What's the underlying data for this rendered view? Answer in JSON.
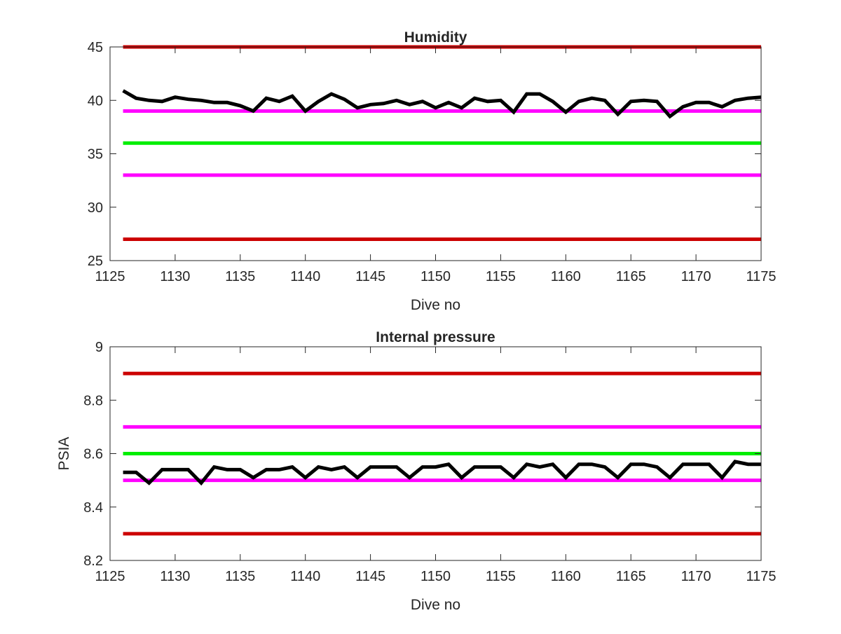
{
  "chart_data": [
    {
      "type": "line",
      "title": "Humidity",
      "xlabel": "Dive no",
      "ylabel": "",
      "xlim": [
        1125,
        1175
      ],
      "ylim": [
        25,
        45
      ],
      "xticks": [
        "1125",
        "1130",
        "1135",
        "1140",
        "1145",
        "1150",
        "1155",
        "1160",
        "1165",
        "1170",
        "1175"
      ],
      "yticks": [
        "25",
        "30",
        "35",
        "40",
        "45"
      ],
      "grid": false,
      "thresholds": [
        {
          "value": 45,
          "color": "#cc0000"
        },
        {
          "value": 39,
          "color": "#ff00ff"
        },
        {
          "value": 36,
          "color": "#00ee00"
        },
        {
          "value": 33,
          "color": "#ff00ff"
        },
        {
          "value": 27,
          "color": "#cc0000"
        }
      ],
      "series": [
        {
          "color": "#000000",
          "x": [
            1126,
            1127,
            1128,
            1129,
            1130,
            1131,
            1132,
            1133,
            1134,
            1135,
            1136,
            1137,
            1138,
            1139,
            1140,
            1141,
            1142,
            1143,
            1144,
            1145,
            1146,
            1147,
            1148,
            1149,
            1150,
            1151,
            1152,
            1153,
            1154,
            1155,
            1156,
            1157,
            1158,
            1159,
            1160,
            1161,
            1162,
            1163,
            1164,
            1165,
            1166,
            1167,
            1168,
            1169,
            1170,
            1171,
            1172,
            1173,
            1174,
            1175
          ],
          "values": [
            40.9,
            40.2,
            40.0,
            39.9,
            40.3,
            40.1,
            40.0,
            39.8,
            39.8,
            39.5,
            39.0,
            40.2,
            39.9,
            40.4,
            39.0,
            39.9,
            40.6,
            40.1,
            39.3,
            39.6,
            39.7,
            40.0,
            39.6,
            39.9,
            39.3,
            39.8,
            39.3,
            40.2,
            39.9,
            40.0,
            38.9,
            40.6,
            40.6,
            39.9,
            38.9,
            39.9,
            40.2,
            40.0,
            38.7,
            39.9,
            40.0,
            39.9,
            38.5,
            39.4,
            39.8,
            39.8,
            39.4,
            40.0,
            40.2,
            40.3
          ]
        }
      ]
    },
    {
      "type": "line",
      "title": "Internal pressure",
      "xlabel": "Dive no",
      "ylabel": "PSIA",
      "xlim": [
        1125,
        1175
      ],
      "ylim": [
        8.2,
        9.0
      ],
      "xticks": [
        "1125",
        "1130",
        "1135",
        "1140",
        "1145",
        "1150",
        "1155",
        "1160",
        "1165",
        "1170",
        "1175"
      ],
      "yticks": [
        "8.2",
        "8.4",
        "8.6",
        "8.8",
        "9"
      ],
      "grid": false,
      "thresholds": [
        {
          "value": 8.9,
          "color": "#cc0000"
        },
        {
          "value": 8.7,
          "color": "#ff00ff"
        },
        {
          "value": 8.6,
          "color": "#00ee00"
        },
        {
          "value": 8.5,
          "color": "#ff00ff"
        },
        {
          "value": 8.3,
          "color": "#cc0000"
        }
      ],
      "series": [
        {
          "color": "#000000",
          "x": [
            1126,
            1127,
            1128,
            1129,
            1130,
            1131,
            1132,
            1133,
            1134,
            1135,
            1136,
            1137,
            1138,
            1139,
            1140,
            1141,
            1142,
            1143,
            1144,
            1145,
            1146,
            1147,
            1148,
            1149,
            1150,
            1151,
            1152,
            1153,
            1154,
            1155,
            1156,
            1157,
            1158,
            1159,
            1160,
            1161,
            1162,
            1163,
            1164,
            1165,
            1166,
            1167,
            1168,
            1169,
            1170,
            1171,
            1172,
            1173,
            1174,
            1175
          ],
          "values": [
            8.53,
            8.53,
            8.49,
            8.54,
            8.54,
            8.54,
            8.49,
            8.55,
            8.54,
            8.54,
            8.51,
            8.54,
            8.54,
            8.55,
            8.51,
            8.55,
            8.54,
            8.55,
            8.51,
            8.55,
            8.55,
            8.55,
            8.51,
            8.55,
            8.55,
            8.56,
            8.51,
            8.55,
            8.55,
            8.55,
            8.51,
            8.56,
            8.55,
            8.56,
            8.51,
            8.56,
            8.56,
            8.55,
            8.51,
            8.56,
            8.56,
            8.55,
            8.51,
            8.56,
            8.56,
            8.56,
            8.51,
            8.57,
            8.56,
            8.56
          ]
        }
      ]
    }
  ]
}
